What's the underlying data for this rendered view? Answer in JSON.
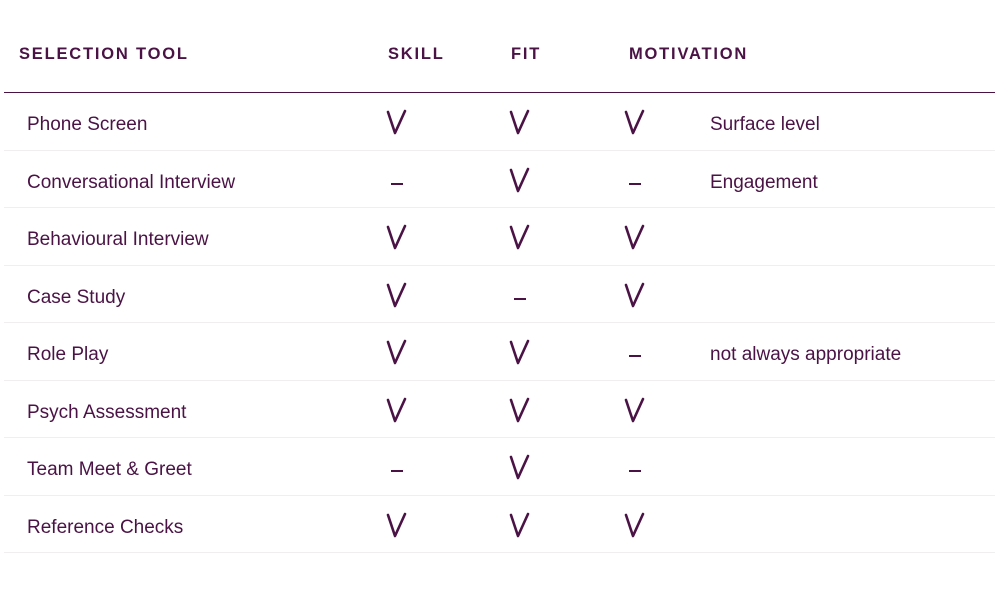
{
  "headers": {
    "tool": "SELECTION TOOL",
    "skill": "SKILL",
    "fit": "FIT",
    "motivation": "MOTIVATION"
  },
  "rows": [
    {
      "tool": "Phone Screen",
      "skill": "check",
      "fit": "check",
      "motivation": "check",
      "note": "Surface level"
    },
    {
      "tool": "Conversational Interview",
      "skill": "dash",
      "fit": "check",
      "motivation": "dash",
      "note": "Engagement"
    },
    {
      "tool": "Behavioural Interview",
      "skill": "check",
      "fit": "check",
      "motivation": "check",
      "note": ""
    },
    {
      "tool": "Case Study",
      "skill": "check",
      "fit": "dash",
      "motivation": "check",
      "note": ""
    },
    {
      "tool": "Role Play",
      "skill": "check",
      "fit": "check",
      "motivation": "dash",
      "note": "not always appropriate"
    },
    {
      "tool": "Psych Assessment",
      "skill": "check",
      "fit": "check",
      "motivation": "check",
      "note": ""
    },
    {
      "tool": "Team Meet & Greet",
      "skill": "dash",
      "fit": "check",
      "motivation": "dash",
      "note": ""
    },
    {
      "tool": "Reference Checks",
      "skill": "check",
      "fit": "check",
      "motivation": "check",
      "note": ""
    }
  ],
  "colors": {
    "text": "#4a1245",
    "row_divider": "#f1eef0"
  },
  "icons": {
    "check": "checkmark-icon",
    "dash": "dash-icon"
  }
}
